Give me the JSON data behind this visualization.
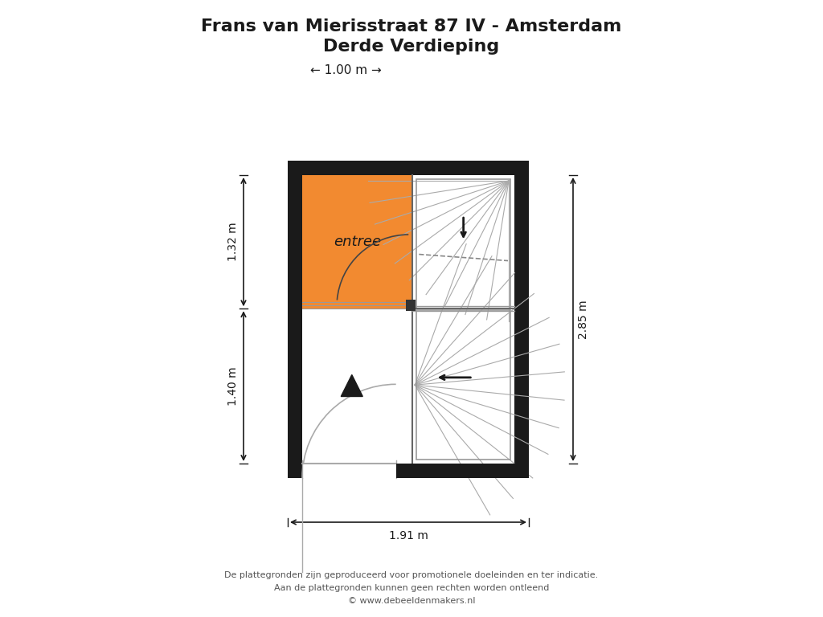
{
  "title_line1": "Frans van Mierisstraat 87 IV - Amsterdam",
  "title_line2": "Derde Verdieping",
  "bg_color": "#ffffff",
  "wall_color": "#1a1a1a",
  "orange_color": "#F28A30",
  "footer_text1": "De plattegronden zijn geproduceerd voor promotionele doeleinden en ter indicatie.",
  "footer_text2": "Aan de plattegronden kunnen geen rechten worden ontleend",
  "footer_text3": "© www.debeeldenmakers.nl",
  "scale_label": "← 1.00 m →",
  "dim_top_label": "1.32 m",
  "dim_bottom_label": "1.40 m",
  "dim_right_label": "2.85 m",
  "dim_width_label": "1.91 m",
  "room_label": "entree"
}
